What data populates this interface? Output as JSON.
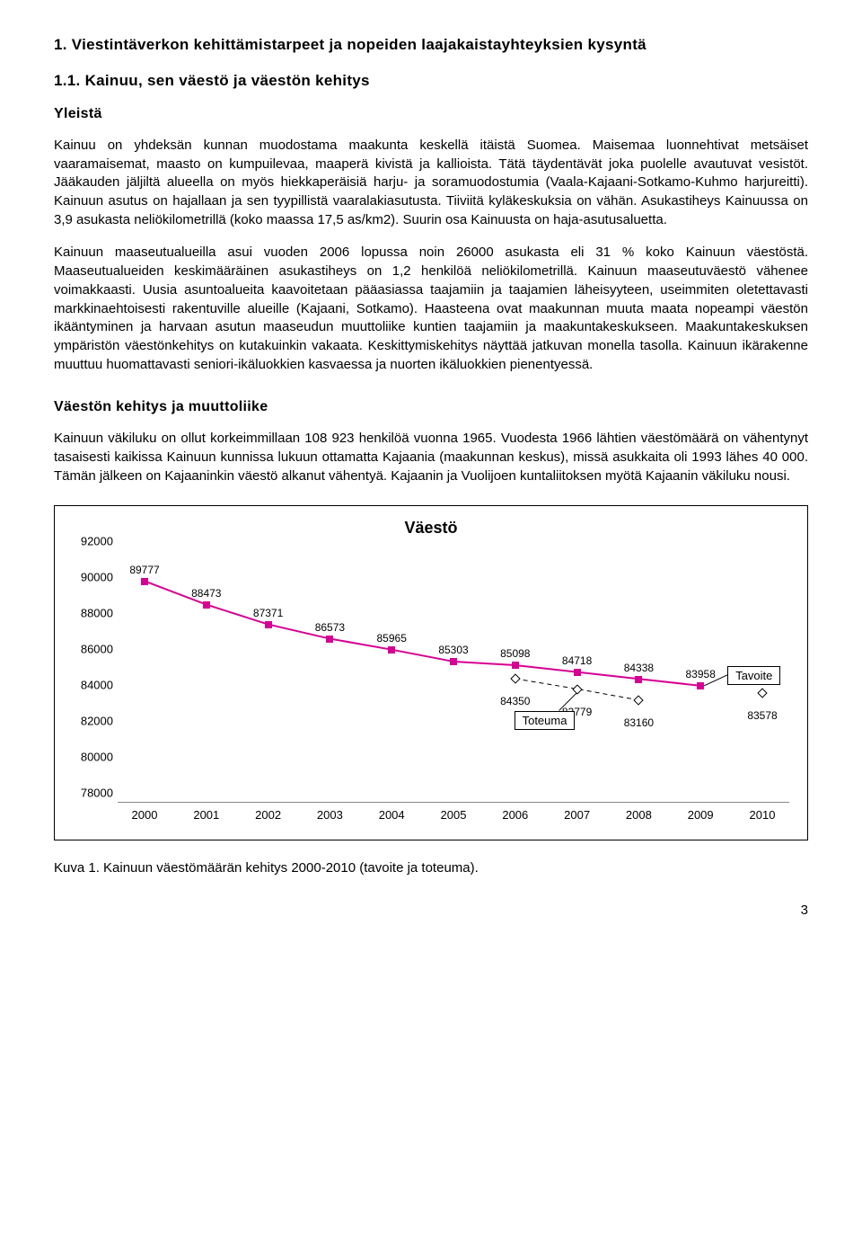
{
  "headings": {
    "h1": "1. Viestintäverkon kehittämistarpeet ja nopeiden laajakaistayhteyksien kysyntä",
    "h2": "1.1. Kainuu, sen väestö ja väestön kehitys",
    "h3": "Yleistä",
    "h4": "Väestön kehitys ja muuttoliike"
  },
  "paragraphs": {
    "p1": "Kainuu on yhdeksän kunnan muodostama maakunta keskellä itäistä Suomea. Maisemaa luonnehtivat metsäiset vaaramaisemat, maasto on kumpuilevaa, maaperä kivistä ja kallioista. Tätä täydentävät joka puolelle avautuvat vesistöt. Jääkauden jäljiltä alueella on myös hiekkaperäisiä harju- ja soramuodostumia (Vaala-Kajaani-Sotkamo-Kuhmo harjureitti). Kainuun asutus on hajallaan ja sen tyypillistä vaaralakiasutusta. Tiiviitä kyläkeskuksia on vähän. Asukastiheys Kainuussa on 3,9 asukasta neliökilometrillä (koko maassa 17,5 as/km2). Suurin osa Kainuusta on haja-asutusaluetta.",
    "p2": "Kainuun maaseutualueilla asui vuoden 2006 lopussa noin 26000 asukasta eli 31 % koko Kainuun väestöstä. Maaseutualueiden keskimääräinen asukastiheys on 1,2 henkilöä neliökilometrillä. Kainuun maaseutuväestö vähenee voimakkaasti. Uusia asuntoalueita kaavoitetaan pääasiassa taajamiin ja taajamien läheisyyteen, useimmiten oletettavasti markkinaehtoisesti rakentuville alueille (Kajaani, Sotkamo). Haasteena ovat maakunnan muuta maata nopeampi väestön ikääntyminen ja harvaan asutun maaseudun muuttoliike kuntien taajamiin ja maakuntakeskukseen. Maakuntakeskuksen ympäristön väestönkehitys on kutakuinkin vakaata. Keskittymiskehitys näyttää jatkuvan monella tasolla. Kainuun ikärakenne muuttuu huomattavasti seniori-ikäluokkien kasvaessa ja nuorten ikäluokkien pienentyessä.",
    "p3": "Kainuun väkiluku on ollut korkeimmillaan 108 923 henkilöä vuonna 1965. Vuodesta 1966 lähtien väestömäärä on vähentynyt tasaisesti kaikissa Kainuun kunnissa lukuun ottamatta Kajaania (maakunnan keskus), missä asukkaita oli 1993 lähes 40 000. Tämän jälkeen on Kajaaninkin väestö alkanut vähentyä. Kajaanin ja Vuolijoen kuntaliitoksen myötä Kajaanin väkiluku nousi."
  },
  "chart": {
    "title": "Väestö",
    "type": "line",
    "ylim": [
      78000,
      92000
    ],
    "ytick_step": 2000,
    "yticks": [
      78000,
      80000,
      82000,
      84000,
      86000,
      88000,
      90000,
      92000
    ],
    "xcategories": [
      "2000",
      "2001",
      "2002",
      "2003",
      "2004",
      "2005",
      "2006",
      "2007",
      "2008",
      "2009",
      "2010"
    ],
    "series_tavoite": {
      "name": "Tavoite",
      "color": "#d60093",
      "marker": "square",
      "marker_fill": "#d60093",
      "line_width": 2,
      "points": [
        {
          "x": "2000",
          "y": 89777,
          "label": "89777"
        },
        {
          "x": "2001",
          "y": 88473,
          "label": "88473"
        },
        {
          "x": "2002",
          "y": 87371,
          "label": "87371"
        },
        {
          "x": "2003",
          "y": 86573,
          "label": "86573"
        },
        {
          "x": "2004",
          "y": 85965,
          "label": "85965"
        },
        {
          "x": "2005",
          "y": 85303,
          "label": "85303"
        },
        {
          "x": "2006",
          "y": 85098,
          "label": "85098"
        },
        {
          "x": "2007",
          "y": 84718,
          "label": "84718"
        },
        {
          "x": "2008",
          "y": 84338,
          "label": "84338"
        },
        {
          "x": "2009",
          "y": 83958,
          "label": "83958"
        }
      ]
    },
    "series_toteuma": {
      "name": "Toteuma",
      "color": "#000000",
      "marker": "diamond",
      "marker_fill": "#ffffff",
      "line_style": "dashed",
      "line_width": 1,
      "points": [
        {
          "x": "2006",
          "y": 84350,
          "label": "84350"
        },
        {
          "x": "2007",
          "y": 83779,
          "label": "83779"
        },
        {
          "x": "2008",
          "y": 83160,
          "label": "83160"
        },
        {
          "x": "2010",
          "y": 83578,
          "label": "83578",
          "solo": true
        }
      ]
    },
    "legend_tavoite": "Tavoite",
    "legend_toteuma": "Toteuma",
    "background_color": "#ffffff"
  },
  "caption": "Kuva 1. Kainuun väestömäärän kehitys 2000-2010 (tavoite ja toteuma).",
  "page_number": "3"
}
